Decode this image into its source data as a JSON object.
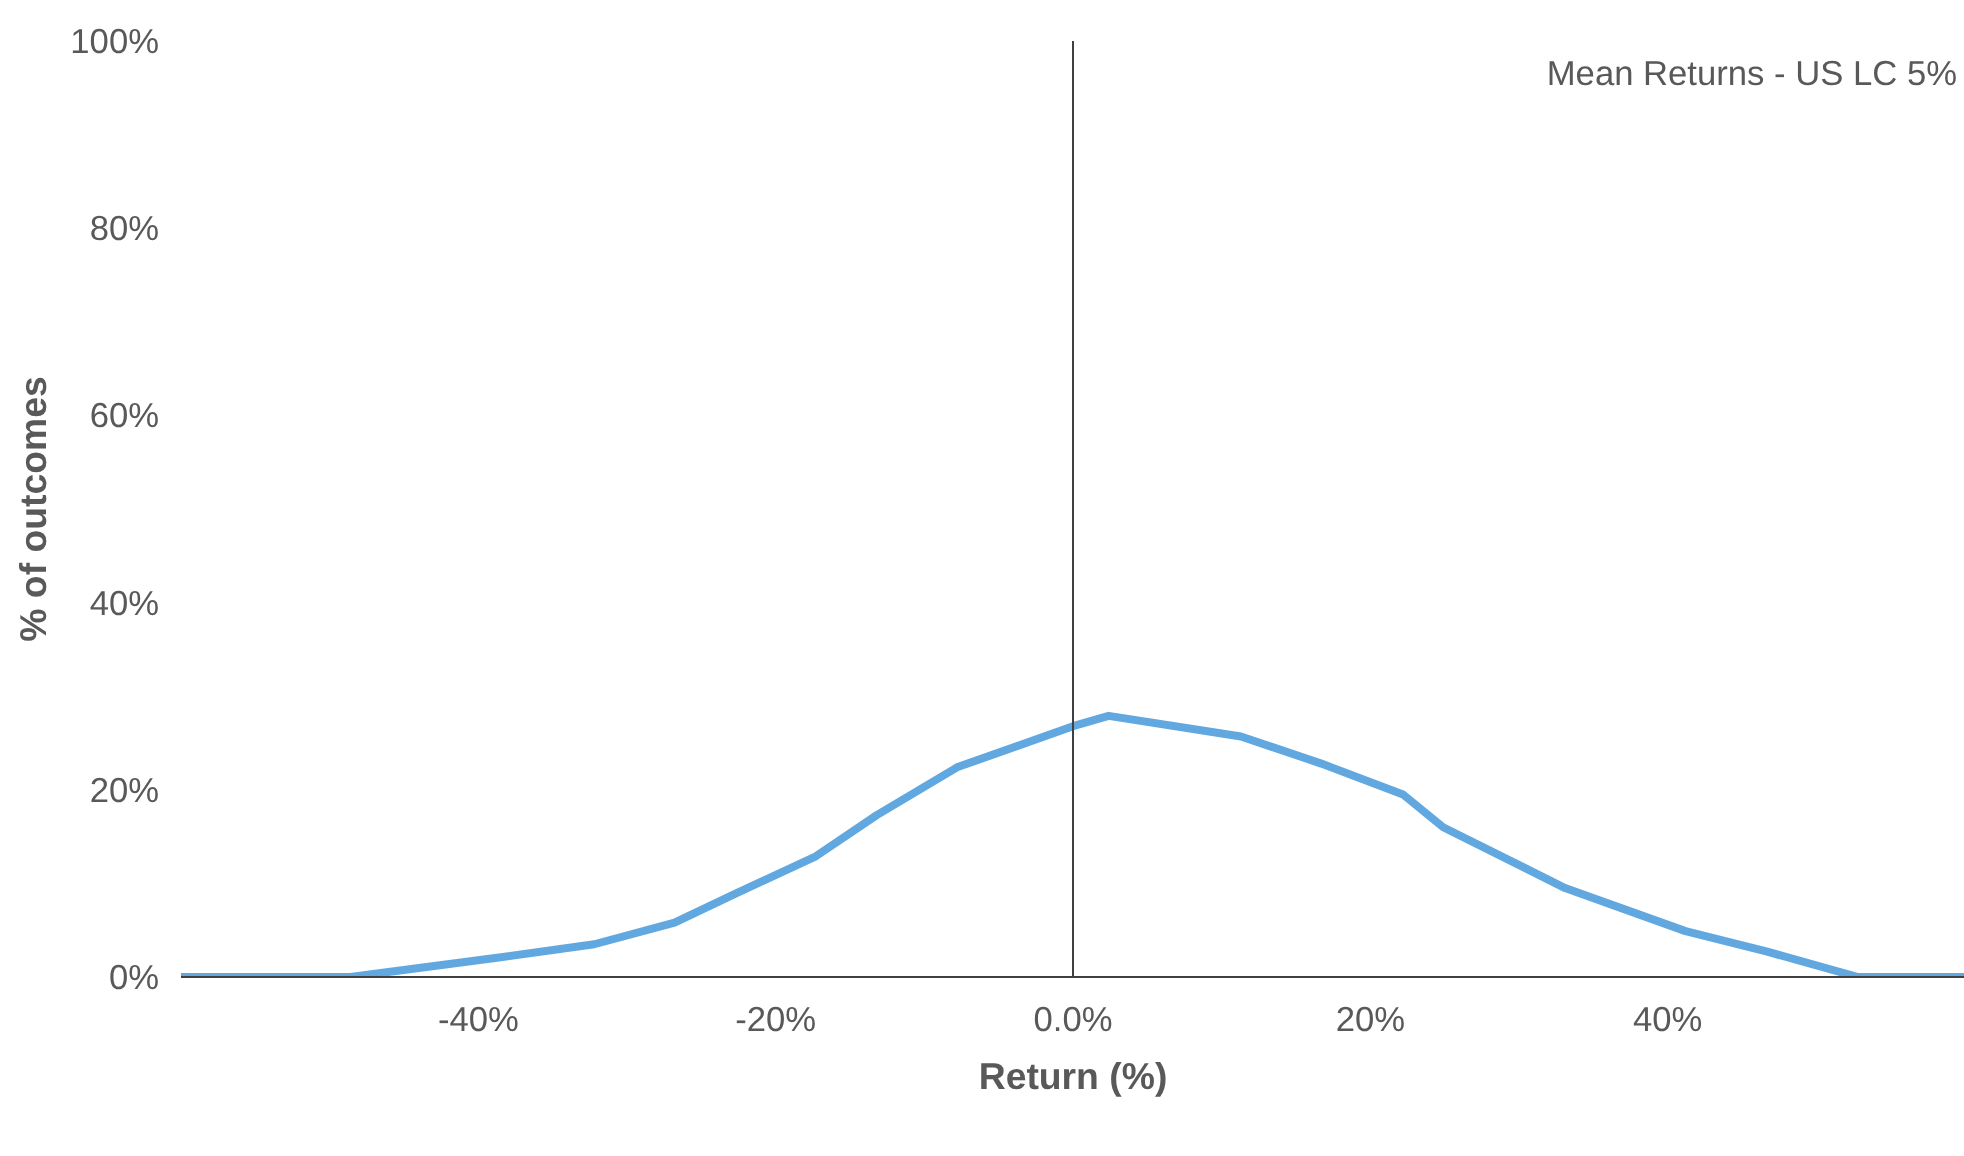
{
  "chart_data": {
    "type": "line",
    "title": "Mean Returns - US LC 5%",
    "xlabel": "Return (%)",
    "ylabel": "% of outcomes",
    "x": [
      -60,
      -48.6,
      -39,
      -32.2,
      -26.8,
      -22.7,
      -17.3,
      -13.2,
      -7.8,
      0,
      2.4,
      11.3,
      16.7,
      22.2,
      24.9,
      33.1,
      41.2,
      46.7,
      52.8,
      60
    ],
    "series": [
      {
        "color": "#62a8e0",
        "values": [
          0,
          0,
          2,
          3.5,
          5.8,
          8.9,
          12.9,
          17.3,
          22.4,
          26.8,
          27.9,
          25.7,
          22.8,
          19.5,
          16,
          9.5,
          4.9,
          2.7,
          0,
          0
        ]
      }
    ],
    "xlim": [
      -60,
      60
    ],
    "ylim": [
      0,
      100
    ],
    "xticks": [
      {
        "value": -40,
        "label": "-40%"
      },
      {
        "value": -20,
        "label": "-20%"
      },
      {
        "value": 0,
        "label": "0.0%"
      },
      {
        "value": 20,
        "label": "20%"
      },
      {
        "value": 40,
        "label": "40%"
      }
    ],
    "yticks": [
      {
        "value": 0,
        "label": "0%"
      },
      {
        "value": 20,
        "label": "20%"
      },
      {
        "value": 40,
        "label": "40%"
      },
      {
        "value": 60,
        "label": "60%"
      },
      {
        "value": 80,
        "label": "80%"
      },
      {
        "value": 100,
        "label": "100%"
      }
    ],
    "ref_lines": [
      {
        "axis": "x",
        "value": 0,
        "color": "#404040"
      }
    ],
    "grid": false,
    "marker": "none",
    "line_style": "solid"
  }
}
